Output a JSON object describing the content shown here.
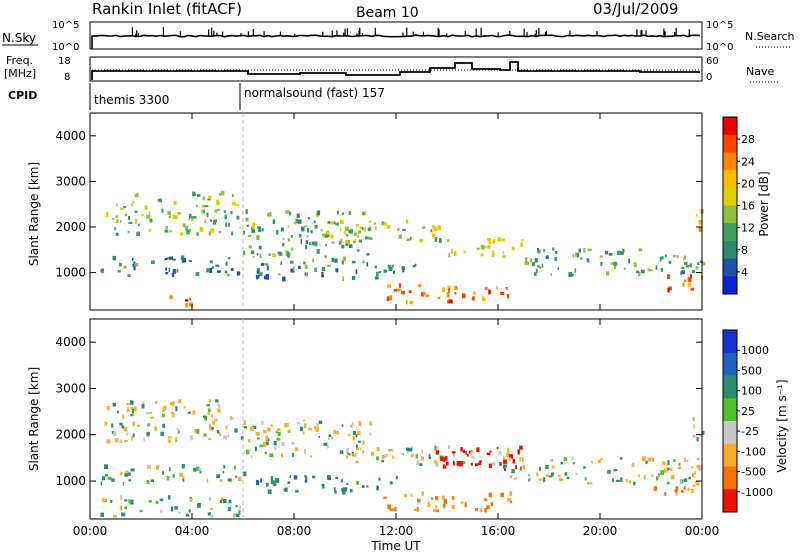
{
  "header": {
    "station": "Rankin Inlet (fitACF)",
    "beam": "Beam 10",
    "date": "03/Jul/2009"
  },
  "nsky_panel": {
    "left_label": "N.Sky",
    "right_label": "N.Search",
    "tick_top": "10^5",
    "tick_bottom": "10^0"
  },
  "freq_panel": {
    "label_line1": "Freq.",
    "label_line2": "[MHz]",
    "right_label": "Nave",
    "left_ticks": [
      "18",
      "8"
    ],
    "right_ticks": [
      "60",
      "0"
    ]
  },
  "cpid": {
    "label": "CPID",
    "modes": [
      "themis 3300",
      "normalsound (fast) 157"
    ]
  },
  "power_colorbar": {
    "title": "Power [dB]",
    "tick_labels": [
      "28",
      "24",
      "20",
      "16",
      "12",
      "8",
      "4"
    ],
    "colors": [
      "#ee0000",
      "#ff4400",
      "#ff8800",
      "#ffbb00",
      "#e0d000",
      "#90c040",
      "#40a060",
      "#2a8c6e",
      "#2050a0",
      "#1020d0"
    ]
  },
  "velocity_colorbar": {
    "title": "Velocity [m s⁻¹]",
    "tick_labels": [
      "1000",
      "500",
      "100",
      "25",
      "-25",
      "-100",
      "-500",
      "-1000"
    ],
    "colors": [
      "#1a2fd0",
      "#2060c0",
      "#2a8c70",
      "#50c030",
      "#c8c8c8",
      "#ffaa30",
      "#ff7000",
      "#ee1000"
    ]
  },
  "x_axis": {
    "label": "Time UT",
    "tick_labels": [
      "00:00",
      "04:00",
      "08:00",
      "12:00",
      "16:00",
      "20:00",
      "00:00"
    ]
  },
  "chart_data": [
    {
      "type": "heatmap",
      "title": "Power [dB]",
      "xlabel": "Time UT",
      "ylabel": "Slant Range [km]",
      "x_ticks": [
        "00:00",
        "04:00",
        "08:00",
        "12:00",
        "16:00",
        "20:00",
        "00:00"
      ],
      "y_ticks": [
        "1000",
        "2000",
        "3000",
        "4000"
      ],
      "xlim": [
        0,
        24
      ],
      "ylim": [
        180,
        4500
      ],
      "colorbar_ticks": [
        "4",
        "8",
        "12",
        "16",
        "20",
        "24",
        "28"
      ],
      "bands": [
        {
          "t0": 0.5,
          "t1": 6,
          "r0": 1800,
          "r1": 2700,
          "power": 16
        },
        {
          "t0": 0.3,
          "t1": 6,
          "r0": 900,
          "r1": 1300,
          "power": 10
        },
        {
          "t0": 2.8,
          "t1": 4,
          "r0": 200,
          "r1": 450,
          "power": 28
        },
        {
          "t0": 6,
          "t1": 11,
          "r0": 1200,
          "r1": 2300,
          "power": 14
        },
        {
          "t0": 9,
          "t1": 14,
          "r0": 1600,
          "r1": 2100,
          "power": 18
        },
        {
          "t0": 6.5,
          "t1": 13,
          "r0": 800,
          "r1": 1200,
          "power": 10
        },
        {
          "t0": 11.5,
          "t1": 16.5,
          "r0": 300,
          "r1": 700,
          "power": 26
        },
        {
          "t0": 14,
          "t1": 17,
          "r0": 1300,
          "r1": 1700,
          "power": 20
        },
        {
          "t0": 17,
          "t1": 24,
          "r0": 900,
          "r1": 1500,
          "power": 12
        },
        {
          "t0": 22.5,
          "t1": 24,
          "r0": 500,
          "r1": 900,
          "power": 26
        },
        {
          "t0": 23.5,
          "t1": 24,
          "r0": 1800,
          "r1": 2300,
          "power": 24
        }
      ]
    },
    {
      "type": "heatmap",
      "title": "Velocity [m s⁻¹]",
      "xlabel": "Time UT",
      "ylabel": "Slant Range [km]",
      "x_ticks": [
        "00:00",
        "04:00",
        "08:00",
        "12:00",
        "16:00",
        "20:00",
        "00:00"
      ],
      "y_ticks": [
        "1000",
        "2000",
        "3000",
        "4000"
      ],
      "xlim": [
        0,
        24
      ],
      "ylim": [
        180,
        4500
      ],
      "colorbar_ticks": [
        "-1000",
        "-500",
        "-100",
        "-25",
        "25",
        "100",
        "500",
        "1000"
      ],
      "bands": [
        {
          "t0": 0.5,
          "t1": 6,
          "r0": 1800,
          "r1": 2700,
          "velocity": 0
        },
        {
          "t0": 0.3,
          "t1": 6,
          "r0": 900,
          "r1": 1300,
          "velocity": 60
        },
        {
          "t0": 0.3,
          "t1": 6,
          "r0": 200,
          "r1": 600,
          "velocity": 80
        },
        {
          "t0": 6,
          "t1": 11,
          "r0": 1500,
          "r1": 2300,
          "velocity": 0
        },
        {
          "t0": 6.5,
          "t1": 12,
          "r0": 700,
          "r1": 1100,
          "velocity": 200
        },
        {
          "t0": 10,
          "t1": 17,
          "r0": 1300,
          "r1": 1700,
          "velocity": 0
        },
        {
          "t0": 13.5,
          "t1": 17,
          "r0": 1200,
          "r1": 1750,
          "velocity": -900
        },
        {
          "t0": 11.5,
          "t1": 16.5,
          "r0": 300,
          "r1": 700,
          "velocity": -300
        },
        {
          "t0": 16,
          "t1": 24,
          "r0": 900,
          "r1": 1500,
          "velocity": 0
        },
        {
          "t0": 22,
          "t1": 24,
          "r0": 600,
          "r1": 900,
          "velocity": -300
        },
        {
          "t0": 23.5,
          "t1": 24,
          "r0": 1800,
          "r1": 2300,
          "velocity": 0
        }
      ]
    }
  ]
}
